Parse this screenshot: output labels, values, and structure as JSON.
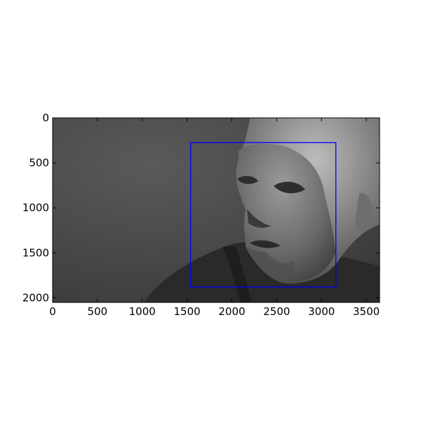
{
  "chart_data": {
    "type": "image",
    "title": "",
    "xlabel": "",
    "ylabel": "",
    "image_size": {
      "width": 3648,
      "height": 2052
    },
    "xlim": [
      0,
      3648
    ],
    "ylim": [
      2052,
      0
    ],
    "xticks": [
      0,
      500,
      1000,
      1500,
      2000,
      2500,
      3000,
      3500
    ],
    "yticks": [
      0,
      500,
      1000,
      1500,
      2000
    ],
    "xtick_labels": [
      "0",
      "500",
      "1000",
      "1500",
      "2000",
      "2500",
      "3000",
      "3500"
    ],
    "ytick_labels": [
      "0",
      "500",
      "1000",
      "1500",
      "2000"
    ],
    "grid": false,
    "image_content": "grayscale photograph of a bald man's face looking to the left against a dark gray background",
    "annotations": [
      {
        "type": "rectangle",
        "x0": 1540,
        "y0": 275,
        "x1": 3160,
        "y1": 1880,
        "color": "#0000ff"
      }
    ]
  }
}
